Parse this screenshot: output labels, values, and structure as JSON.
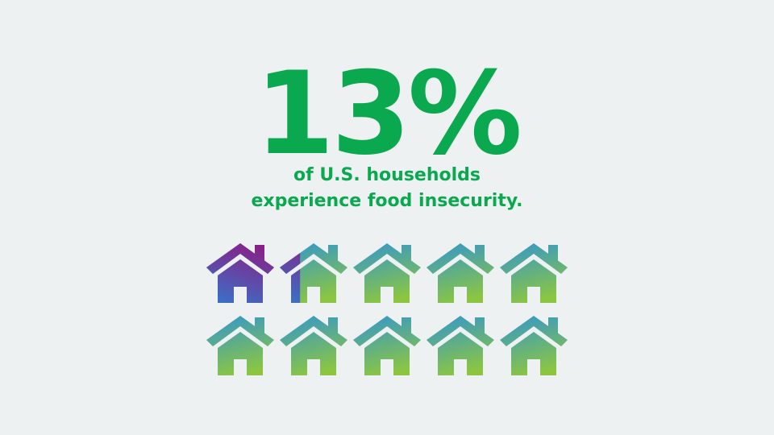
{
  "stat": {
    "value": 13,
    "label": "13%"
  },
  "caption": [
    "of U.S. households",
    "experience food insecurity."
  ]
}
